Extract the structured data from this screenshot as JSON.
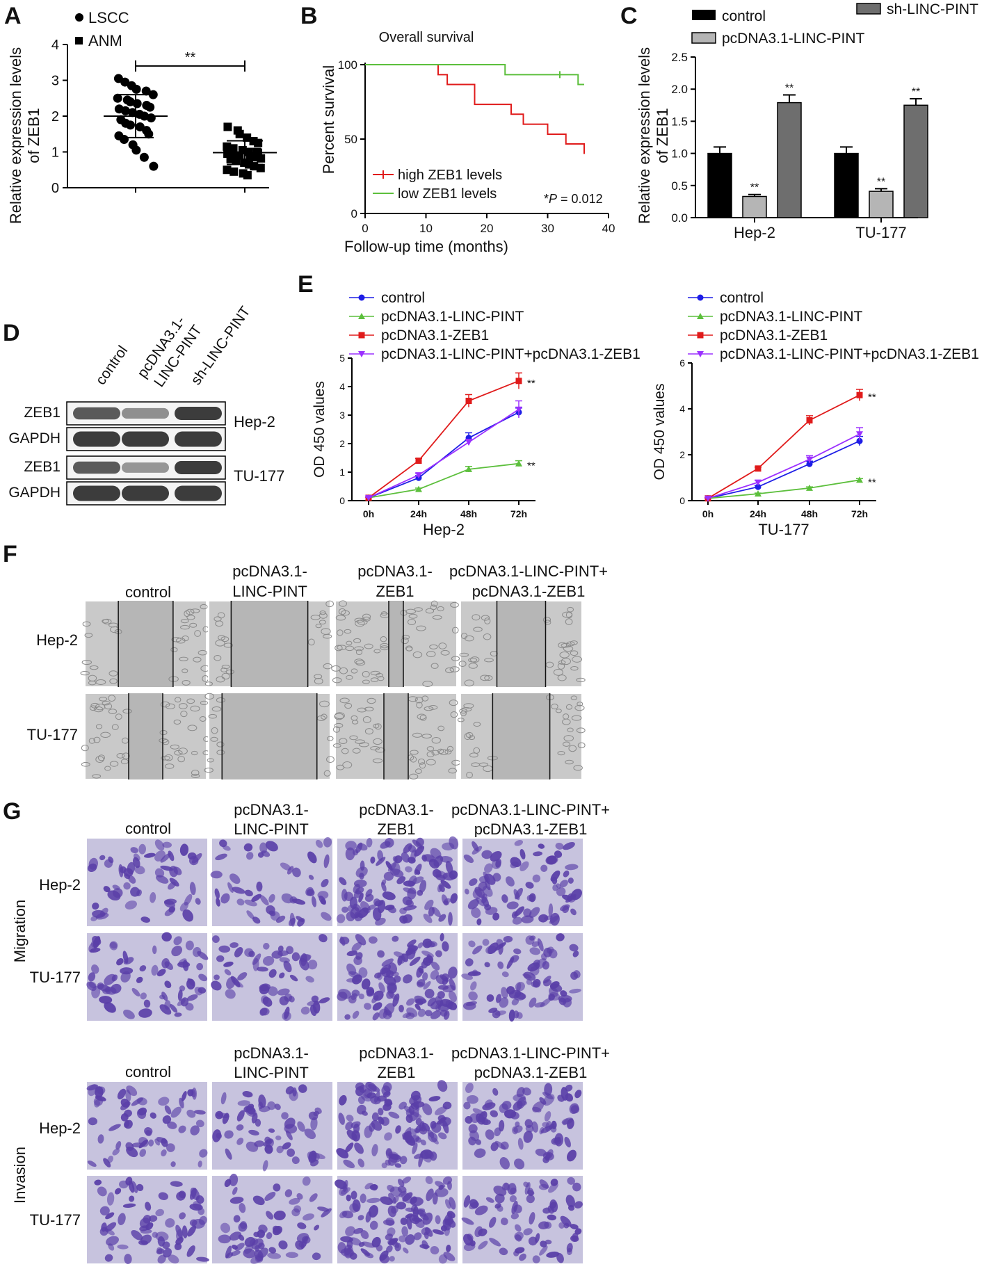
{
  "colors": {
    "red": "#e01b1b",
    "green": "#5cbf3c",
    "blue": "#1e1ee6",
    "purple": "#9b30ff",
    "black_bar": "#000000",
    "light_grey_bar": "#b5b5b5",
    "dark_grey_bar": "#6e6e6e",
    "crystal_violet": "#5a3fa8",
    "migration_bg": "#c7c3de"
  },
  "panels": {
    "A": "A",
    "B": "B",
    "C": "C",
    "D": "D",
    "E": "E",
    "F": "F",
    "G": "G"
  },
  "chart_data": [
    {
      "panel": "A",
      "type": "scatter",
      "title": "",
      "ylabel": "Relative expression levels of ZEB1",
      "ylabel_lines": [
        "Relative expression levels",
        "of ZEB1"
      ],
      "ylim": [
        0,
        4
      ],
      "yticks": [
        "0",
        "1",
        "2",
        "3",
        "4"
      ],
      "legend": [
        "LSCC",
        "ANM"
      ],
      "significance": "**",
      "series": [
        {
          "name": "LSCC",
          "marker": "circle",
          "mean": 2.0,
          "sd": 0.6,
          "values": [
            3.05,
            2.95,
            2.85,
            2.75,
            2.7,
            2.6,
            2.5,
            2.45,
            2.4,
            2.35,
            2.3,
            2.25,
            2.2,
            2.15,
            2.1,
            2.05,
            2.0,
            1.95,
            1.9,
            1.8,
            1.75,
            1.7,
            1.6,
            1.5,
            1.45,
            1.35,
            1.2,
            1.05,
            0.85,
            0.6
          ]
        },
        {
          "name": "ANM",
          "marker": "square",
          "mean": 0.98,
          "sd": 0.33,
          "values": [
            1.7,
            1.6,
            1.5,
            1.4,
            1.3,
            1.25,
            1.15,
            1.1,
            1.05,
            1.0,
            1.0,
            0.98,
            0.95,
            0.93,
            0.9,
            0.88,
            0.85,
            0.82,
            0.8,
            0.75,
            0.7,
            0.65,
            0.6,
            0.55,
            0.5,
            0.45,
            0.4,
            0.35
          ]
        }
      ]
    },
    {
      "panel": "B",
      "type": "line",
      "title": "Overall survival",
      "xlabel": "Follow-up time (months)",
      "ylabel": "Percent survival",
      "xlim": [
        0,
        40
      ],
      "ylim": [
        0,
        100
      ],
      "xticks": [
        "0",
        "10",
        "20",
        "30",
        "40"
      ],
      "yticks": [
        "0",
        "50",
        "100"
      ],
      "p_prefix": "*",
      "p_symbol": "P",
      "p_value": " = 0.012",
      "series": [
        {
          "name": "high ZEB1 levels",
          "steps": [
            [
              0,
              100
            ],
            [
              12,
              100
            ],
            [
              12,
              93.3
            ],
            [
              13.5,
              93.3
            ],
            [
              13.5,
              86.7
            ],
            [
              18,
              86.7
            ],
            [
              18,
              73.3
            ],
            [
              24,
              73.3
            ],
            [
              24,
              66.7
            ],
            [
              26,
              66.7
            ],
            [
              26,
              60
            ],
            [
              30,
              60
            ],
            [
              30,
              53.3
            ],
            [
              33,
              53.3
            ],
            [
              33,
              46.7
            ],
            [
              36,
              46.7
            ],
            [
              36,
              40
            ]
          ]
        },
        {
          "name": "low ZEB1 levels",
          "steps": [
            [
              0,
              100
            ],
            [
              23,
              100
            ],
            [
              23,
              93.3
            ],
            [
              35,
              93.3
            ],
            [
              35,
              86.7
            ],
            [
              36,
              86.7
            ]
          ],
          "censor": [
            32
          ]
        }
      ]
    },
    {
      "panel": "C",
      "type": "bar",
      "title": "",
      "ylabel": "Relative expression levels of ZEB1",
      "ylabel_lines": [
        "Relative expression levels",
        "of ZEB1"
      ],
      "ylim": [
        0,
        2.5
      ],
      "yticks": [
        "0.0",
        "0.5",
        "1.0",
        "1.5",
        "2.0",
        "2.5"
      ],
      "categories": [
        "Hep-2",
        "TU-177"
      ],
      "series": [
        {
          "name": "control",
          "values": [
            1.0,
            1.0
          ],
          "err": [
            0.1,
            0.1
          ],
          "marks": [
            "",
            ""
          ]
        },
        {
          "name": "pcDNA3.1-LINC-PINT",
          "values": [
            0.33,
            0.41
          ],
          "err": [
            0.03,
            0.04
          ],
          "marks": [
            "**",
            "**"
          ]
        },
        {
          "name": "sh-LINC-PINT",
          "values": [
            1.79,
            1.75
          ],
          "err": [
            0.12,
            0.1
          ],
          "marks": [
            "**",
            "**"
          ]
        }
      ]
    },
    {
      "panel": "E",
      "type": "line",
      "title": "",
      "xlabel": "Hep-2",
      "ylabel": "OD 450 values",
      "ylim": [
        0,
        5
      ],
      "yticks": [
        "0",
        "1",
        "2",
        "3",
        "4",
        "5"
      ],
      "x": [
        "0h",
        "24h",
        "48h",
        "72h"
      ],
      "series": [
        {
          "name": "control",
          "values": [
            0.1,
            0.8,
            2.2,
            3.1
          ],
          "err": [
            0.02,
            0.08,
            0.18,
            0.15
          ],
          "mark": ""
        },
        {
          "name": "pcDNA3.1-LINC-PINT",
          "values": [
            0.1,
            0.4,
            1.1,
            1.3
          ],
          "err": [
            0.02,
            0.04,
            0.1,
            0.1
          ],
          "mark": "**"
        },
        {
          "name": "pcDNA3.1-ZEB1",
          "values": [
            0.1,
            1.4,
            3.5,
            4.2
          ],
          "err": [
            0.02,
            0.08,
            0.22,
            0.28
          ],
          "mark": "**"
        },
        {
          "name": "pcDNA3.1-LINC-PINT+pcDNA3.1-ZEB1",
          "values": [
            0.1,
            0.9,
            2.05,
            3.2
          ],
          "err": [
            0.02,
            0.06,
            0.1,
            0.3
          ],
          "mark": ""
        }
      ]
    },
    {
      "panel": "E",
      "type": "line",
      "title": "",
      "xlabel": "TU-177",
      "ylabel": "OD 450 values",
      "ylim": [
        0,
        6
      ],
      "yticks": [
        "0",
        "2",
        "4",
        "6"
      ],
      "x": [
        "0h",
        "24h",
        "48h",
        "72h"
      ],
      "series": [
        {
          "name": "control",
          "values": [
            0.1,
            0.6,
            1.6,
            2.6
          ],
          "err": [
            0.02,
            0.06,
            0.12,
            0.2
          ],
          "mark": ""
        },
        {
          "name": "pcDNA3.1-LINC-PINT",
          "values": [
            0.1,
            0.3,
            0.55,
            0.9
          ],
          "err": [
            0.02,
            0.03,
            0.05,
            0.06
          ],
          "mark": "**"
        },
        {
          "name": "pcDNA3.1-ZEB1",
          "values": [
            0.1,
            1.4,
            3.5,
            4.6
          ],
          "err": [
            0.02,
            0.06,
            0.2,
            0.25
          ],
          "mark": "**"
        },
        {
          "name": "pcDNA3.1-LINC-PINT+pcDNA3.1-ZEB1",
          "values": [
            0.1,
            0.8,
            1.8,
            2.9
          ],
          "err": [
            0.02,
            0.08,
            0.16,
            0.28
          ],
          "mark": ""
        }
      ]
    }
  ],
  "blot": {
    "lanes": [
      [
        "control"
      ],
      [
        "pcDNA3.1-",
        "LINC-PINT"
      ],
      [
        "sh-LINC-PINT"
      ]
    ],
    "rows": [
      "ZEB1",
      "GAPDH",
      "ZEB1",
      "GAPDH"
    ],
    "cells": [
      "Hep-2",
      "TU-177"
    ],
    "intensity": [
      [
        0.8,
        0.45,
        1.0
      ],
      [
        1,
        1,
        1
      ],
      [
        0.8,
        0.4,
        1.0
      ],
      [
        1,
        1,
        1
      ]
    ]
  },
  "wound": {
    "columns": [
      [
        "control"
      ],
      [
        "pcDNA3.1-",
        "LINC-PINT"
      ],
      [
        "pcDNA3.1-",
        "ZEB1"
      ],
      [
        "pcDNA3.1-LINC-PINT+",
        "pcDNA3.1-ZEB1"
      ]
    ],
    "rows": [
      "Hep-2",
      "TU-177"
    ],
    "gap_fraction": [
      [
        0.45,
        0.63,
        0.12,
        0.4
      ],
      [
        0.28,
        0.78,
        0.2,
        0.47
      ]
    ]
  },
  "transwell": {
    "columns": [
      [
        "control"
      ],
      [
        "pcDNA3.1-",
        "LINC-PINT"
      ],
      [
        "pcDNA3.1-",
        "ZEB1"
      ],
      [
        "pcDNA3.1-LINC-PINT+",
        "pcDNA3.1-ZEB1"
      ]
    ],
    "rows": [
      "Hep-2",
      "TU-177"
    ],
    "sections": [
      "Migration",
      "Invasion"
    ],
    "cell_density": [
      [
        [
          0.35,
          0.3,
          0.9,
          0.6
        ],
        [
          0.45,
          0.35,
          1.0,
          0.6
        ]
      ],
      [
        [
          0.4,
          0.35,
          0.9,
          0.6
        ],
        [
          0.45,
          0.4,
          0.95,
          0.55
        ]
      ]
    ]
  }
}
